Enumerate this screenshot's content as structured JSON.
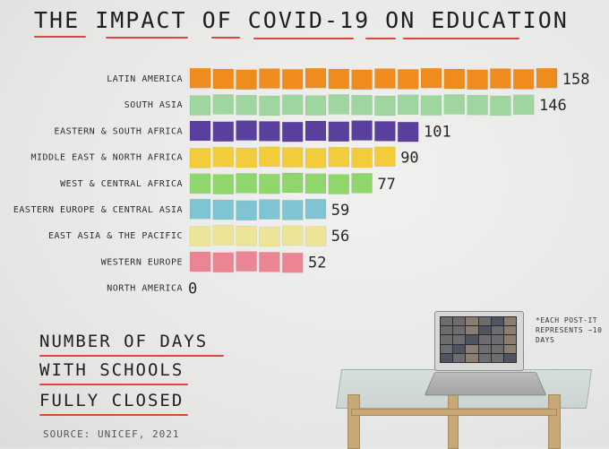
{
  "title": "THE IMPACT OF COVID-19 ON EDUCATION",
  "chart_data": {
    "type": "bar",
    "orientation": "horizontal",
    "unit_note": "*EACH POST-IT REPRESENTS ~10 DAYS",
    "categories": [
      "LATIN AMERICA",
      "SOUTH ASIA",
      "EASTERN & SOUTH AFRICA",
      "MIDDLE EAST & NORTH AFRICA",
      "WEST & CENTRAL AFRICA",
      "EASTERN EUROPE & CENTRAL ASIA",
      "EAST ASIA & THE PACIFIC",
      "WESTERN EUROPE",
      "NORTH AMERICA"
    ],
    "values": [
      158,
      146,
      101,
      90,
      77,
      59,
      56,
      52,
      0
    ],
    "value_labels": [
      "158",
      "146",
      "101",
      "90",
      "77",
      "59",
      "56",
      "52",
      "0"
    ],
    "colors": [
      "#f08c1e",
      "#9fd6a0",
      "#5a3f9e",
      "#f3cc3c",
      "#8fd66c",
      "#7fc4d2",
      "#ece597",
      "#ec8593",
      "#ffffff"
    ]
  },
  "caption": {
    "line1": "NUMBER OF DAYS",
    "line2": "WITH SCHOOLS",
    "line3": "FULLY CLOSED"
  },
  "source": "SOURCE: UNICEF, 2021",
  "note": "*EACH POST-IT REPRESENTS ~10 DAYS"
}
